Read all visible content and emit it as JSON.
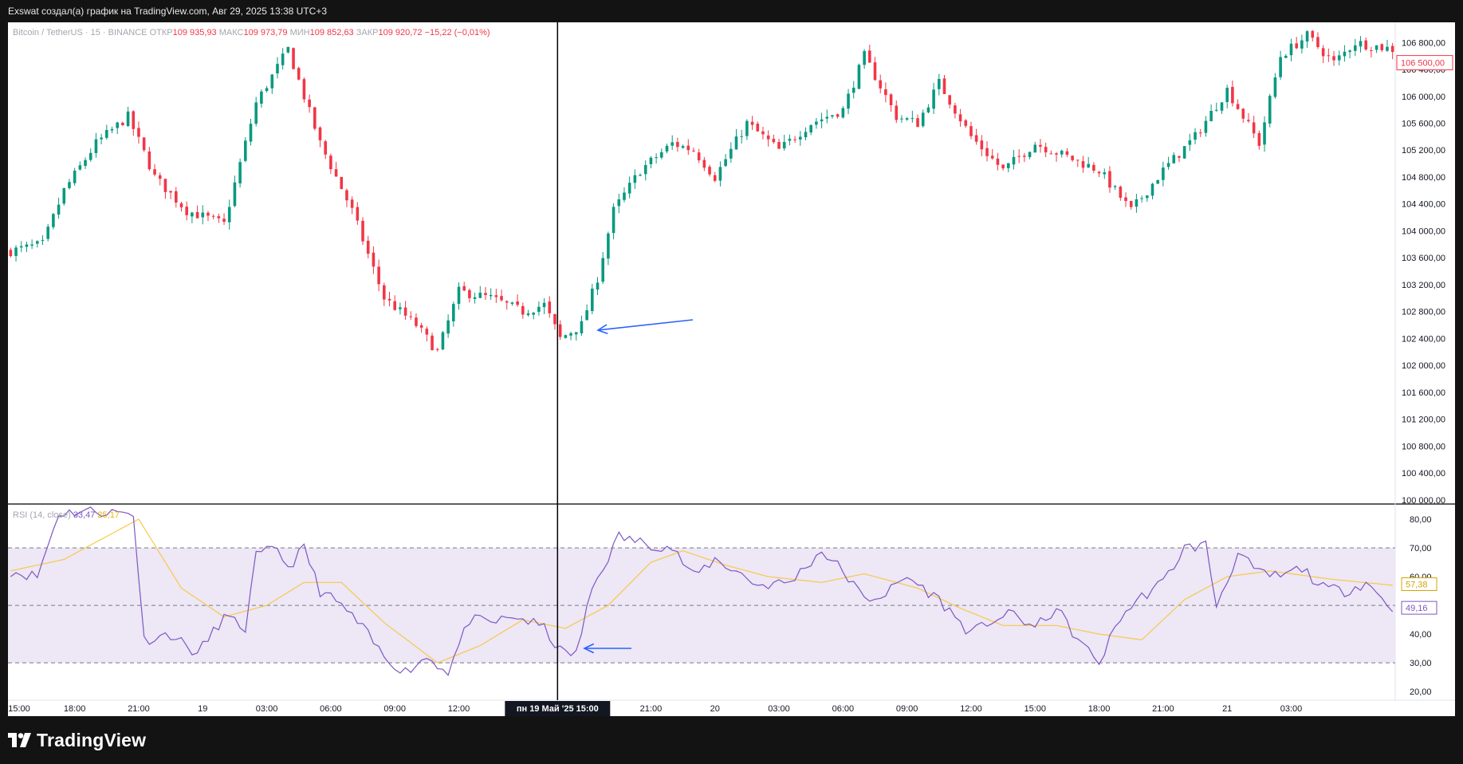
{
  "header": {
    "caption": "Exswat создал(а) график на TradingView.com, Авг 29, 2025 13:38 UTC+3"
  },
  "legend": {
    "symbol": "Bitcoin / TetherUS · 15 · BINANCE",
    "open_label": "ОТКР",
    "open": "109 935,93",
    "high_label": "МАКС",
    "high": "109 973,79",
    "low_label": "МИН",
    "low": "109 852,63",
    "close_label": "ЗАКР",
    "close": "109 920,72",
    "change": "−15,22 (−0,01%)"
  },
  "rsi_legend": {
    "name": "RSI (14, close)",
    "rsi_value": "33,47",
    "ma_value": "25,17"
  },
  "price_badge": "106 500,00",
  "rsi_badges": {
    "ma": "57,38",
    "rsi": "49,16"
  },
  "crosshair_label": "пн 19 Май '25   15:00",
  "footer": {
    "brand": "TradingView"
  },
  "colors": {
    "up": "#089981",
    "down": "#f23645",
    "rsi_line": "#7e57c2",
    "rsi_ma": "#f7c948",
    "rsi_band": "#ede7f6",
    "arrow": "#2962ff"
  },
  "chart_data": [
    {
      "type": "candlestick",
      "title": "Bitcoin / TetherUS · 15 · BINANCE",
      "y_ticks": [
        "106 800,00",
        "106 400,00",
        "106 000,00",
        "105 600,00",
        "105 200,00",
        "104 800,00",
        "104 400,00",
        "104 000,00",
        "103 600,00",
        "103 200,00",
        "102 800,00",
        "102 400,00",
        "102 000,00",
        "101 600,00",
        "101 200,00",
        "100 800,00",
        "100 400,00",
        "100 000,00"
      ],
      "x_ticks": [
        "15:00",
        "18:00",
        "21:00",
        "19",
        "03:00",
        "06:00",
        "09:00",
        "12:00",
        "18:00",
        "21:00",
        "20",
        "03:00",
        "06:00",
        "09:00",
        "12:00",
        "15:00",
        "18:00",
        "21:00",
        "21",
        "03:00"
      ],
      "ylim": [
        99950,
        107100
      ],
      "current_price": 106500,
      "key_points": [
        {
          "t": 0,
          "close": 103700
        },
        {
          "t": 6,
          "close": 103800
        },
        {
          "t": 10,
          "close": 104600
        },
        {
          "t": 16,
          "close": 105300
        },
        {
          "t": 22,
          "close": 105700
        },
        {
          "t": 27,
          "close": 104800
        },
        {
          "t": 33,
          "close": 104300
        },
        {
          "t": 40,
          "close": 104100
        },
        {
          "t": 46,
          "close": 105900
        },
        {
          "t": 52,
          "close": 106700
        },
        {
          "t": 58,
          "close": 105300
        },
        {
          "t": 64,
          "close": 104300
        },
        {
          "t": 70,
          "close": 103000
        },
        {
          "t": 76,
          "close": 102600
        },
        {
          "t": 80,
          "close": 102200
        },
        {
          "t": 84,
          "close": 103100
        },
        {
          "t": 90,
          "close": 103000
        },
        {
          "t": 96,
          "close": 102800
        },
        {
          "t": 100,
          "close": 102900
        },
        {
          "t": 103,
          "close": 102400
        },
        {
          "t": 107,
          "close": 102600
        },
        {
          "t": 110,
          "close": 103300
        },
        {
          "t": 113,
          "close": 104300
        },
        {
          "t": 118,
          "close": 104900
        },
        {
          "t": 124,
          "close": 105300
        },
        {
          "t": 128,
          "close": 105200
        },
        {
          "t": 132,
          "close": 104800
        },
        {
          "t": 138,
          "close": 105600
        },
        {
          "t": 144,
          "close": 105200
        },
        {
          "t": 150,
          "close": 105600
        },
        {
          "t": 156,
          "close": 105800
        },
        {
          "t": 160,
          "close": 106600
        },
        {
          "t": 166,
          "close": 105700
        },
        {
          "t": 170,
          "close": 105600
        },
        {
          "t": 174,
          "close": 106200
        },
        {
          "t": 180,
          "close": 105400
        },
        {
          "t": 186,
          "close": 104900
        },
        {
          "t": 192,
          "close": 105300
        },
        {
          "t": 198,
          "close": 105100
        },
        {
          "t": 204,
          "close": 104900
        },
        {
          "t": 210,
          "close": 104300
        },
        {
          "t": 216,
          "close": 104900
        },
        {
          "t": 222,
          "close": 105400
        },
        {
          "t": 228,
          "close": 106100
        },
        {
          "t": 234,
          "close": 105300
        },
        {
          "t": 238,
          "close": 106600
        },
        {
          "t": 243,
          "close": 106900
        },
        {
          "t": 248,
          "close": 106500
        },
        {
          "t": 252,
          "close": 106800
        },
        {
          "t": 259,
          "close": 106700
        }
      ]
    },
    {
      "type": "line",
      "title": "RSI (14, close)",
      "y_ticks": [
        "80,00",
        "70,00",
        "60,00",
        "50,00",
        "40,00",
        "30,00",
        "20,00"
      ],
      "ylim": [
        17,
        85
      ],
      "bands": [
        30,
        50,
        70
      ],
      "rsi_key_points": [
        {
          "t": 0,
          "v": 62
        },
        {
          "t": 5,
          "v": 60
        },
        {
          "t": 9,
          "v": 82
        },
        {
          "t": 14,
          "v": 83
        },
        {
          "t": 23,
          "v": 82
        },
        {
          "t": 25,
          "v": 38
        },
        {
          "t": 30,
          "v": 40
        },
        {
          "t": 35,
          "v": 33
        },
        {
          "t": 40,
          "v": 46
        },
        {
          "t": 44,
          "v": 42
        },
        {
          "t": 46,
          "v": 67
        },
        {
          "t": 50,
          "v": 70
        },
        {
          "t": 52,
          "v": 63
        },
        {
          "t": 55,
          "v": 70
        },
        {
          "t": 58,
          "v": 55
        },
        {
          "t": 62,
          "v": 50
        },
        {
          "t": 66,
          "v": 42
        },
        {
          "t": 70,
          "v": 32
        },
        {
          "t": 74,
          "v": 27
        },
        {
          "t": 78,
          "v": 32
        },
        {
          "t": 82,
          "v": 27
        },
        {
          "t": 86,
          "v": 45
        },
        {
          "t": 90,
          "v": 44
        },
        {
          "t": 95,
          "v": 46
        },
        {
          "t": 100,
          "v": 42
        },
        {
          "t": 103,
          "v": 34
        },
        {
          "t": 106,
          "v": 33
        },
        {
          "t": 109,
          "v": 56
        },
        {
          "t": 114,
          "v": 74
        },
        {
          "t": 118,
          "v": 72
        },
        {
          "t": 124,
          "v": 70
        },
        {
          "t": 128,
          "v": 60
        },
        {
          "t": 132,
          "v": 66
        },
        {
          "t": 136,
          "v": 62
        },
        {
          "t": 140,
          "v": 57
        },
        {
          "t": 146,
          "v": 58
        },
        {
          "t": 152,
          "v": 69
        },
        {
          "t": 156,
          "v": 62
        },
        {
          "t": 160,
          "v": 52
        },
        {
          "t": 164,
          "v": 54
        },
        {
          "t": 168,
          "v": 60
        },
        {
          "t": 174,
          "v": 52
        },
        {
          "t": 180,
          "v": 40
        },
        {
          "t": 184,
          "v": 45
        },
        {
          "t": 188,
          "v": 47
        },
        {
          "t": 192,
          "v": 42
        },
        {
          "t": 196,
          "v": 49
        },
        {
          "t": 200,
          "v": 38
        },
        {
          "t": 204,
          "v": 30
        },
        {
          "t": 208,
          "v": 46
        },
        {
          "t": 212,
          "v": 53
        },
        {
          "t": 216,
          "v": 58
        },
        {
          "t": 220,
          "v": 70
        },
        {
          "t": 224,
          "v": 71
        },
        {
          "t": 226,
          "v": 50
        },
        {
          "t": 230,
          "v": 68
        },
        {
          "t": 234,
          "v": 61
        },
        {
          "t": 238,
          "v": 60
        },
        {
          "t": 242,
          "v": 63
        },
        {
          "t": 246,
          "v": 56
        },
        {
          "t": 250,
          "v": 55
        },
        {
          "t": 254,
          "v": 58
        },
        {
          "t": 259,
          "v": 49
        }
      ],
      "ma_key_points": [
        {
          "t": 0,
          "v": 62
        },
        {
          "t": 10,
          "v": 66
        },
        {
          "t": 24,
          "v": 80
        },
        {
          "t": 32,
          "v": 56
        },
        {
          "t": 40,
          "v": 46
        },
        {
          "t": 48,
          "v": 50
        },
        {
          "t": 55,
          "v": 58
        },
        {
          "t": 62,
          "v": 58
        },
        {
          "t": 70,
          "v": 44
        },
        {
          "t": 80,
          "v": 30
        },
        {
          "t": 88,
          "v": 36
        },
        {
          "t": 96,
          "v": 45
        },
        {
          "t": 104,
          "v": 42
        },
        {
          "t": 112,
          "v": 50
        },
        {
          "t": 120,
          "v": 65
        },
        {
          "t": 126,
          "v": 69
        },
        {
          "t": 134,
          "v": 64
        },
        {
          "t": 142,
          "v": 60
        },
        {
          "t": 152,
          "v": 58
        },
        {
          "t": 160,
          "v": 61
        },
        {
          "t": 170,
          "v": 56
        },
        {
          "t": 178,
          "v": 49
        },
        {
          "t": 186,
          "v": 43
        },
        {
          "t": 196,
          "v": 43
        },
        {
          "t": 204,
          "v": 40
        },
        {
          "t": 212,
          "v": 38
        },
        {
          "t": 220,
          "v": 52
        },
        {
          "t": 228,
          "v": 60
        },
        {
          "t": 236,
          "v": 62
        },
        {
          "t": 248,
          "v": 59
        },
        {
          "t": 259,
          "v": 57
        }
      ]
    }
  ]
}
